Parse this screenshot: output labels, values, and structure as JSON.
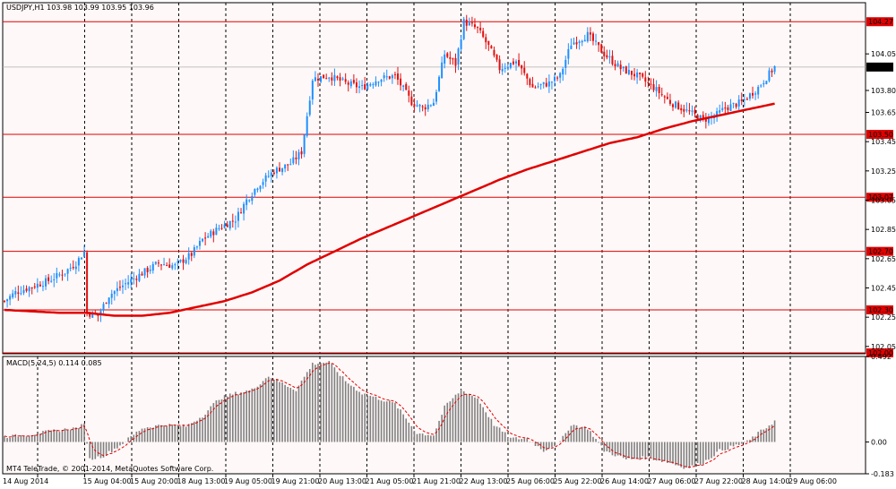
{
  "header": {
    "symbol_line": "USDJPY,H1  103.98 103.99 103.95 103.96"
  },
  "macd_header": "MACD(5,24,5) 0.114 0.085",
  "copyright": "MT4 TeleTrade, © 2001-2014, MetaQuotes Software Corp.",
  "colors": {
    "background": "#ffffff",
    "plot_area": "#fff8f8",
    "candle_up": "#1e90ff",
    "candle_down": "#e01010",
    "moving_average": "#e00000",
    "levels": "#e00000",
    "grid": "#000000",
    "macd_hist": "#808080",
    "macd_signal": "#e00000"
  },
  "chart_data": {
    "type": "candlestick",
    "symbol": "USDJPY",
    "timeframe": "H1",
    "ohlc_header": {
      "open": 103.98,
      "high": 103.99,
      "low": 103.95,
      "close": 103.96
    },
    "current_price": "103.96",
    "price_ticks": [
      "104.05",
      "103.80",
      "103.65",
      "103.45",
      "103.25",
      "103.05",
      "102.85",
      "102.65",
      "102.45",
      "102.25",
      "102.05"
    ],
    "price_range": [
      102.0,
      104.4
    ],
    "time_labels": [
      "14 Aug 2014",
      "15 Aug 04:00",
      "15 Aug 20:00",
      "18 Aug 13:00",
      "19 Aug 05:00",
      "19 Aug 21:00",
      "20 Aug 13:00",
      "21 Aug 05:00",
      "21 Aug 21:00",
      "22 Aug 13:00",
      "25 Aug 06:00",
      "25 Aug 22:00",
      "26 Aug 14:00",
      "27 Aug 06:00",
      "27 Aug 22:00",
      "28 Aug 14:00",
      "29 Aug 06:00"
    ],
    "levels": [
      {
        "price": 104.27,
        "label": "104.27"
      },
      {
        "price": 103.5,
        "label": "103.50"
      },
      {
        "price": 103.07,
        "label": "103.07"
      },
      {
        "price": 102.7,
        "label": "102.70"
      },
      {
        "price": 102.3,
        "label": "102.30"
      },
      {
        "price": 102.0,
        "label": "102.00"
      }
    ],
    "close_anchors": [
      [
        0,
        102.36
      ],
      [
        4,
        102.42
      ],
      [
        10,
        102.46
      ],
      [
        16,
        102.5
      ],
      [
        22,
        102.56
      ],
      [
        26,
        102.62
      ],
      [
        29,
        102.7
      ],
      [
        30,
        102.28
      ],
      [
        34,
        102.26
      ],
      [
        38,
        102.4
      ],
      [
        44,
        102.48
      ],
      [
        50,
        102.55
      ],
      [
        56,
        102.62
      ],
      [
        62,
        102.6
      ],
      [
        68,
        102.68
      ],
      [
        72,
        102.78
      ],
      [
        78,
        102.86
      ],
      [
        84,
        102.92
      ],
      [
        88,
        103.05
      ],
      [
        92,
        103.15
      ],
      [
        98,
        103.25
      ],
      [
        104,
        103.3
      ],
      [
        108,
        103.38
      ],
      [
        112,
        103.88
      ],
      [
        118,
        103.9
      ],
      [
        124,
        103.85
      ],
      [
        130,
        103.82
      ],
      [
        136,
        103.88
      ],
      [
        142,
        103.9
      ],
      [
        148,
        103.72
      ],
      [
        152,
        103.68
      ],
      [
        156,
        103.72
      ],
      [
        160,
        104.05
      ],
      [
        164,
        103.98
      ],
      [
        167,
        104.27
      ],
      [
        172,
        104.22
      ],
      [
        176,
        104.1
      ],
      [
        180,
        103.95
      ],
      [
        186,
        104.0
      ],
      [
        192,
        103.82
      ],
      [
        198,
        103.85
      ],
      [
        202,
        103.9
      ],
      [
        206,
        104.12
      ],
      [
        212,
        104.18
      ],
      [
        218,
        104.05
      ],
      [
        224,
        103.95
      ],
      [
        230,
        103.9
      ],
      [
        236,
        103.82
      ],
      [
        242,
        103.72
      ],
      [
        248,
        103.66
      ],
      [
        254,
        103.6
      ],
      [
        258,
        103.62
      ],
      [
        262,
        103.68
      ],
      [
        268,
        103.72
      ],
      [
        274,
        103.82
      ],
      [
        280,
        103.96
      ]
    ],
    "ma_anchors": [
      [
        0,
        102.3
      ],
      [
        10,
        102.29
      ],
      [
        20,
        102.28
      ],
      [
        30,
        102.28
      ],
      [
        40,
        102.26
      ],
      [
        50,
        102.26
      ],
      [
        60,
        102.28
      ],
      [
        70,
        102.32
      ],
      [
        80,
        102.36
      ],
      [
        90,
        102.42
      ],
      [
        100,
        102.5
      ],
      [
        110,
        102.61
      ],
      [
        120,
        102.7
      ],
      [
        130,
        102.79
      ],
      [
        140,
        102.87
      ],
      [
        150,
        102.95
      ],
      [
        160,
        103.03
      ],
      [
        170,
        103.11
      ],
      [
        180,
        103.19
      ],
      [
        190,
        103.26
      ],
      [
        200,
        103.32
      ],
      [
        210,
        103.38
      ],
      [
        220,
        103.44
      ],
      [
        230,
        103.48
      ],
      [
        240,
        103.54
      ],
      [
        250,
        103.59
      ],
      [
        260,
        103.63
      ],
      [
        270,
        103.67
      ],
      [
        280,
        103.71
      ]
    ],
    "macd": {
      "params": "5,24,5",
      "value": 0.114,
      "signal_value": 0.085,
      "ticks": [
        "0.492",
        "0.00",
        "-0.183"
      ],
      "range": [
        -0.183,
        0.492
      ],
      "anchors": [
        [
          0,
          0.03
        ],
        [
          8,
          0.04
        ],
        [
          16,
          0.06
        ],
        [
          26,
          0.08
        ],
        [
          29,
          0.1
        ],
        [
          31,
          -0.1
        ],
        [
          36,
          -0.08
        ],
        [
          42,
          -0.02
        ],
        [
          50,
          0.08
        ],
        [
          58,
          0.1
        ],
        [
          66,
          0.09
        ],
        [
          72,
          0.15
        ],
        [
          78,
          0.25
        ],
        [
          84,
          0.28
        ],
        [
          90,
          0.3
        ],
        [
          96,
          0.38
        ],
        [
          102,
          0.33
        ],
        [
          106,
          0.3
        ],
        [
          112,
          0.45
        ],
        [
          118,
          0.46
        ],
        [
          124,
          0.35
        ],
        [
          130,
          0.28
        ],
        [
          136,
          0.25
        ],
        [
          142,
          0.22
        ],
        [
          150,
          0.05
        ],
        [
          156,
          0.04
        ],
        [
          160,
          0.2
        ],
        [
          166,
          0.3
        ],
        [
          172,
          0.25
        ],
        [
          178,
          0.1
        ],
        [
          184,
          0.02
        ],
        [
          190,
          0.02
        ],
        [
          196,
          -0.05
        ],
        [
          202,
          0.0
        ],
        [
          206,
          0.1
        ],
        [
          212,
          0.08
        ],
        [
          218,
          -0.05
        ],
        [
          226,
          -0.1
        ],
        [
          234,
          -0.09
        ],
        [
          242,
          -0.12
        ],
        [
          248,
          -0.15
        ],
        [
          254,
          -0.12
        ],
        [
          260,
          -0.05
        ],
        [
          266,
          -0.02
        ],
        [
          270,
          0.0
        ],
        [
          274,
          0.05
        ],
        [
          280,
          0.12
        ]
      ]
    }
  }
}
